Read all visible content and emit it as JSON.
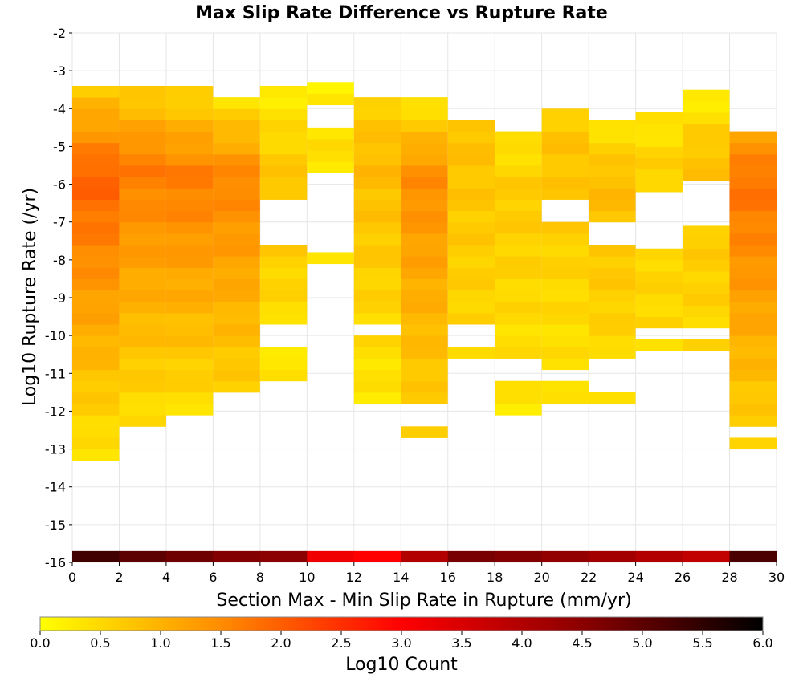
{
  "chart_data": {
    "type": "heatmap",
    "title": "Max Slip Rate Difference vs Rupture Rate",
    "xlabel": "Section Max - Min Slip Rate in Rupture (mm/yr)",
    "ylabel": "Log10 Rupture Rate (/yr)",
    "xlim": [
      0,
      30
    ],
    "ylim": [
      -16,
      -2
    ],
    "x_ticks": [
      "0",
      "2",
      "4",
      "6",
      "8",
      "10",
      "12",
      "14",
      "16",
      "18",
      "20",
      "22",
      "24",
      "26",
      "28",
      "30"
    ],
    "y_ticks": [
      "-2",
      "-3",
      "-4",
      "-5",
      "-6",
      "-7",
      "-8",
      "-9",
      "-10",
      "-11",
      "-12",
      "-13",
      "-14",
      "-15",
      "-16"
    ],
    "x_bin_width": 2,
    "y_bin_height": 0.3,
    "grid": true,
    "colorbar": {
      "label": "Log10 Count",
      "range": [
        0,
        6
      ],
      "ticks": [
        "0.0",
        "0.5",
        "1.0",
        "1.5",
        "2.0",
        "2.5",
        "3.0",
        "3.5",
        "4.0",
        "4.5",
        "5.0",
        "5.5",
        "6.0"
      ],
      "colors": [
        "#ffff00",
        "#ff8c00",
        "#ff0000",
        "#000000"
      ],
      "position": "bottom"
    },
    "columns": [
      {
        "x_start": 0,
        "y_min": -13.3,
        "y_max": -3.3,
        "v_bottom": 0.3,
        "v_peak": 2.0,
        "peak_y": -5.8,
        "v_top": 0.6
      },
      {
        "x_start": 2,
        "y_min": -12.4,
        "y_max": -3.3,
        "v_bottom": 0.4,
        "v_peak": 1.7,
        "peak_y": -5.5,
        "v_top": 0.5
      },
      {
        "x_start": 4,
        "y_min": -12.1,
        "y_max": -3.3,
        "v_bottom": 0.4,
        "v_peak": 1.7,
        "peak_y": -5.8,
        "v_top": 0.4
      },
      {
        "x_start": 6,
        "y_min": -11.5,
        "y_max": -3.6,
        "v_bottom": 0.6,
        "v_peak": 1.6,
        "peak_y": -5.8,
        "v_top": 0.3
      },
      {
        "x_start": 8,
        "y_min": -11.2,
        "y_max": -3.3,
        "v_bottom": 0.3,
        "v_peak": 0.8,
        "peak_y": -6.0,
        "v_top": 0.2,
        "gaps": [
          [
            -7.5,
            -6.4
          ],
          [
            -10.3,
            -9.7
          ]
        ]
      },
      {
        "x_start": 10,
        "y_min": -8.1,
        "y_max": -3.3,
        "v_bottom": 0.4,
        "v_peak": 0.4,
        "peak_y": -5.0,
        "v_top": 0.2,
        "gaps": [
          [
            -7.8,
            -5.6
          ],
          [
            -4.4,
            -4.0
          ]
        ]
      },
      {
        "x_start": 12,
        "y_min": -11.8,
        "y_max": -3.6,
        "v_bottom": 0.3,
        "v_peak": 0.9,
        "peak_y": -5.5,
        "v_top": 0.6,
        "gaps": [
          [
            -10.0,
            -9.8
          ]
        ]
      },
      {
        "x_start": 14,
        "y_min": -12.7,
        "y_max": -3.6,
        "v_bottom": 0.5,
        "v_peak": 1.5,
        "peak_y": -5.8,
        "v_top": 0.2,
        "gaps": [
          [
            -12.4,
            -11.8
          ]
        ]
      },
      {
        "x_start": 16,
        "y_min": -10.6,
        "y_max": -4.2,
        "v_bottom": 0.5,
        "v_peak": 0.8,
        "peak_y": -5.2,
        "v_top": 0.8,
        "gaps": [
          [
            -10.3,
            -9.6
          ]
        ]
      },
      {
        "x_start": 18,
        "y_min": -12.1,
        "y_max": -4.5,
        "v_bottom": 0.3,
        "v_peak": 0.7,
        "peak_y": -6.3,
        "v_top": 0.3,
        "gaps": [
          [
            -11.3,
            -10.7
          ]
        ]
      },
      {
        "x_start": 20,
        "y_min": -11.8,
        "y_max": -3.9,
        "v_bottom": 0.3,
        "v_peak": 0.8,
        "peak_y": -5.0,
        "v_top": 0.6,
        "gaps": [
          [
            -7.0,
            -6.3
          ],
          [
            -11.3,
            -11.0
          ]
        ]
      },
      {
        "x_start": 22,
        "y_min": -11.8,
        "y_max": -4.2,
        "v_bottom": 0.4,
        "v_peak": 0.9,
        "peak_y": -6.0,
        "v_top": 0.3,
        "gaps": [
          [
            -7.6,
            -7.0
          ],
          [
            -11.6,
            -10.7
          ]
        ]
      },
      {
        "x_start": 24,
        "y_min": -10.4,
        "y_max": -4.2,
        "v_bottom": 0.5,
        "v_peak": 0.6,
        "peak_y": -5.5,
        "v_top": 0.3,
        "gaps": [
          [
            -7.6,
            -6.1
          ],
          [
            -10.1,
            -9.8
          ]
        ]
      },
      {
        "x_start": 26,
        "y_min": -10.4,
        "y_max": -3.6,
        "v_bottom": 0.5,
        "v_peak": 0.8,
        "peak_y": -5.2,
        "v_top": 0.2,
        "gaps": [
          [
            -7.0,
            -5.8
          ],
          [
            -10.1,
            -9.8
          ]
        ]
      },
      {
        "x_start": 28,
        "y_min": -13.0,
        "y_max": -4.5,
        "v_bottom": 0.5,
        "v_peak": 1.8,
        "peak_y": -6.0,
        "v_top": 1.2,
        "gaps": [
          [
            -12.7,
            -12.4
          ]
        ]
      }
    ],
    "bottom_row": {
      "y": -16,
      "values": [
        5.3,
        5.0,
        4.8,
        4.6,
        4.5,
        3.2,
        3.0,
        4.0,
        4.7,
        4.6,
        4.4,
        4.2,
        4.0,
        3.8,
        5.2
      ]
    }
  }
}
